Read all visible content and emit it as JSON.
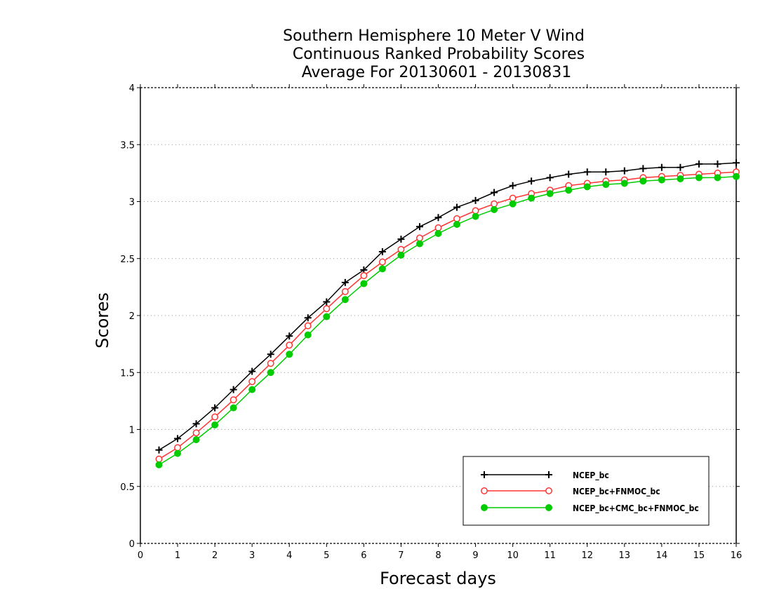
{
  "chart_data": {
    "type": "line",
    "title": [
      "Southern Hemisphere 10 Meter V Wind",
      "Continuous Ranked Probability Scores",
      "Average For 20130601 - 20130831"
    ],
    "xlabel": "Forecast days",
    "ylabel": "Scores",
    "xlim": [
      0,
      16
    ],
    "ylim": [
      0,
      4
    ],
    "xticks": [
      0,
      1,
      2,
      3,
      4,
      5,
      6,
      7,
      8,
      9,
      10,
      11,
      12,
      13,
      14,
      15,
      16
    ],
    "xtick_labels": [
      "0",
      "1",
      "2",
      "3",
      "4",
      "5",
      "6",
      "7",
      "8",
      "9",
      "10",
      "11",
      "12",
      "13",
      "14",
      "15",
      "16"
    ],
    "yticks": [
      0,
      0.5,
      1,
      1.5,
      2,
      2.5,
      3,
      3.5,
      4
    ],
    "ytick_labels": [
      "0",
      "0.5",
      "1",
      "1.5",
      "2",
      "2.5",
      "3",
      "3.5",
      "4"
    ],
    "grid": "horizontal-dotted",
    "legend_position": "bottom-right",
    "x": [
      0.5,
      1,
      1.5,
      2,
      2.5,
      3,
      3.5,
      4,
      4.5,
      5,
      5.5,
      6,
      6.5,
      7,
      7.5,
      8,
      8.5,
      9,
      9.5,
      10,
      10.5,
      11,
      11.5,
      12,
      12.5,
      13,
      13.5,
      14,
      14.5,
      15,
      15.5,
      16
    ],
    "series": [
      {
        "name": "NCEP_bc",
        "color": "#000000",
        "marker": "plus",
        "values": [
          0.82,
          0.92,
          1.05,
          1.19,
          1.35,
          1.51,
          1.66,
          1.82,
          1.98,
          2.12,
          2.29,
          2.4,
          2.56,
          2.67,
          2.78,
          2.86,
          2.95,
          3.01,
          3.08,
          3.14,
          3.18,
          3.21,
          3.24,
          3.26,
          3.26,
          3.27,
          3.29,
          3.3,
          3.3,
          3.33,
          3.33,
          3.34
        ]
      },
      {
        "name": "NCEP_bc+FNMOC_bc",
        "color": "#ff3333",
        "marker": "open-circle",
        "values": [
          0.74,
          0.84,
          0.97,
          1.11,
          1.26,
          1.42,
          1.58,
          1.74,
          1.91,
          2.06,
          2.21,
          2.35,
          2.47,
          2.58,
          2.68,
          2.77,
          2.85,
          2.92,
          2.98,
          3.03,
          3.07,
          3.1,
          3.14,
          3.16,
          3.18,
          3.19,
          3.21,
          3.22,
          3.23,
          3.24,
          3.25,
          3.26
        ]
      },
      {
        "name": "NCEP_bc+CMC_bc+FNMOC_bc",
        "color": "#00cc00",
        "marker": "filled-circle",
        "values": [
          0.69,
          0.79,
          0.91,
          1.04,
          1.19,
          1.35,
          1.5,
          1.66,
          1.83,
          1.99,
          2.14,
          2.28,
          2.41,
          2.53,
          2.63,
          2.72,
          2.8,
          2.87,
          2.93,
          2.98,
          3.03,
          3.07,
          3.1,
          3.13,
          3.15,
          3.16,
          3.18,
          3.19,
          3.2,
          3.21,
          3.21,
          3.22
        ]
      }
    ]
  }
}
